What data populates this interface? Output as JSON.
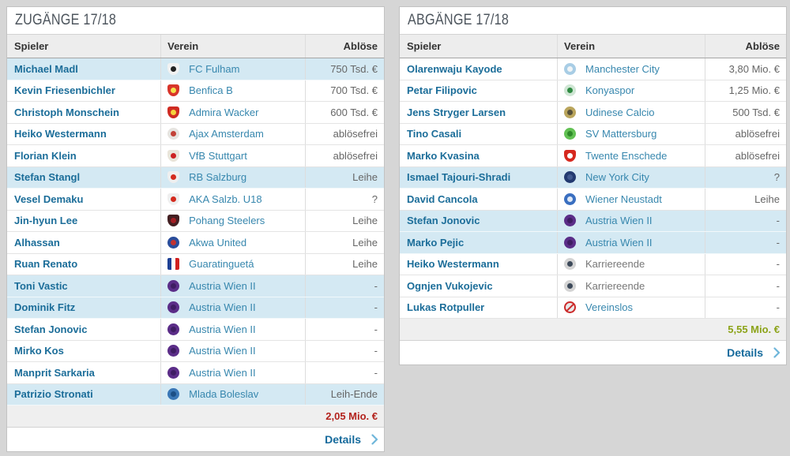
{
  "page": {
    "background": "#d6d6d6"
  },
  "colors": {
    "highlight_row": "#d4e9f3",
    "player_link": "#1b6d99",
    "club_link": "#3787ae",
    "fee_text": "#666666",
    "details_link": "#156a9c",
    "chevron": "#6fb6da",
    "sum_negative": "#b3231d",
    "sum_positive": "#8ca318"
  },
  "tables": [
    {
      "title": "ZUGÄNGE 17/18",
      "columns": [
        "Spieler",
        "Verein",
        "Ablöse"
      ],
      "sum": "2,05 Mio. €",
      "sum_color": "#b3231d",
      "details_label": "Details",
      "rows": [
        {
          "player": "Michael Madl",
          "club": "FC Fulham",
          "fee": "750 Tsd. €",
          "highlight": true,
          "club_link": true,
          "badge": {
            "shape": "shield",
            "c1": "#f2f2f2",
            "c2": "#222222"
          }
        },
        {
          "player": "Kevin Friesenbichler",
          "club": "Benfica B",
          "fee": "700 Tsd. €",
          "highlight": false,
          "club_link": true,
          "badge": {
            "shape": "shield",
            "c1": "#d8352a",
            "c2": "#f3e24c"
          }
        },
        {
          "player": "Christoph Monschein",
          "club": "Admira Wacker",
          "fee": "600 Tsd. €",
          "highlight": false,
          "club_link": true,
          "badge": {
            "shape": "shield",
            "c1": "#cf2b22",
            "c2": "#f5d23c"
          }
        },
        {
          "player": "Heiko Westermann",
          "club": "Ajax Amsterdam",
          "fee": "ablösefrei",
          "highlight": false,
          "club_link": true,
          "badge": {
            "shape": "circle",
            "c1": "#e6e4e0",
            "c2": "#c24238"
          }
        },
        {
          "player": "Florian Klein",
          "club": "VfB Stuttgart",
          "fee": "ablösefrei",
          "highlight": false,
          "club_link": true,
          "badge": {
            "shape": "shield",
            "c1": "#e9e5da",
            "c2": "#cc2222"
          }
        },
        {
          "player": "Stefan Stangl",
          "club": "RB Salzburg",
          "fee": "Leihe",
          "highlight": true,
          "club_link": true,
          "badge": {
            "shape": "shield",
            "c1": "#efefef",
            "c2": "#d42b1e"
          }
        },
        {
          "player": "Vesel Demaku",
          "club": "AKA Salzb. U18",
          "fee": "?",
          "highlight": false,
          "club_link": true,
          "badge": {
            "shape": "shield",
            "c1": "#efefef",
            "c2": "#d42b1e"
          }
        },
        {
          "player": "Jin-hyun Lee",
          "club": "Pohang Steelers",
          "fee": "Leihe",
          "highlight": false,
          "club_link": true,
          "badge": {
            "shape": "shield",
            "c1": "#431f22",
            "c2": "#a31e24"
          }
        },
        {
          "player": "Alhassan",
          "club": "Akwa United",
          "fee": "Leihe",
          "highlight": false,
          "club_link": true,
          "badge": {
            "shape": "circle",
            "c1": "#2a4d9b",
            "c2": "#c23331"
          }
        },
        {
          "player": "Ruan Renato",
          "club": "Guaratinguetá",
          "fee": "Leihe",
          "highlight": false,
          "club_link": true,
          "badge": {
            "shape": "flag",
            "c1": "#1c3f94",
            "c2": "#d02020"
          }
        },
        {
          "player": "Toni Vastic",
          "club": "Austria Wien II",
          "fee": "-",
          "highlight": true,
          "club_link": true,
          "badge": {
            "shape": "circle",
            "c1": "#5b2d88",
            "c2": "#3f1d63"
          }
        },
        {
          "player": "Dominik Fitz",
          "club": "Austria Wien II",
          "fee": "-",
          "highlight": true,
          "club_link": true,
          "badge": {
            "shape": "circle",
            "c1": "#5b2d88",
            "c2": "#3f1d63"
          }
        },
        {
          "player": "Stefan Jonovic",
          "club": "Austria Wien II",
          "fee": "-",
          "highlight": false,
          "club_link": true,
          "badge": {
            "shape": "circle",
            "c1": "#5b2d88",
            "c2": "#3f1d63"
          }
        },
        {
          "player": "Mirko Kos",
          "club": "Austria Wien II",
          "fee": "-",
          "highlight": false,
          "club_link": true,
          "badge": {
            "shape": "circle",
            "c1": "#5b2d88",
            "c2": "#3f1d63"
          }
        },
        {
          "player": "Manprit Sarkaria",
          "club": "Austria Wien II",
          "fee": "-",
          "highlight": false,
          "club_link": true,
          "badge": {
            "shape": "circle",
            "c1": "#5b2d88",
            "c2": "#3f1d63"
          }
        },
        {
          "player": "Patrizio Stronati",
          "club": "Mlada Boleslav",
          "fee": "Leih-Ende",
          "highlight": true,
          "club_link": true,
          "badge": {
            "shape": "circle",
            "c1": "#3a77b6",
            "c2": "#1c4f86"
          }
        }
      ]
    },
    {
      "title": "ABGÄNGE 17/18",
      "columns": [
        "Spieler",
        "Verein",
        "Ablöse"
      ],
      "sum": "5,55 Mio. €",
      "sum_color": "#8ca318",
      "details_label": "Details",
      "rows": [
        {
          "player": "Olarenwaju Kayode",
          "club": "Manchester City",
          "fee": "3,80 Mio. €",
          "highlight": false,
          "club_link": true,
          "badge": {
            "shape": "circle",
            "c1": "#a8cde5",
            "c2": "#f0f4f6"
          }
        },
        {
          "player": "Petar Filipovic",
          "club": "Konyaspor",
          "fee": "1,25 Mio. €",
          "highlight": false,
          "club_link": true,
          "badge": {
            "shape": "circle",
            "c1": "#cfe6d4",
            "c2": "#2f8a42"
          }
        },
        {
          "player": "Jens Stryger Larsen",
          "club": "Udinese Calcio",
          "fee": "500 Tsd. €",
          "highlight": false,
          "club_link": true,
          "badge": {
            "shape": "circle",
            "c1": "#baa55c",
            "c2": "#55503a"
          }
        },
        {
          "player": "Tino Casali",
          "club": "SV Mattersburg",
          "fee": "ablösefrei",
          "highlight": false,
          "club_link": true,
          "badge": {
            "shape": "circle",
            "c1": "#62c153",
            "c2": "#2f8a2a"
          }
        },
        {
          "player": "Marko Kvasina",
          "club": "Twente Enschede",
          "fee": "ablösefrei",
          "highlight": false,
          "club_link": true,
          "badge": {
            "shape": "shield",
            "c1": "#d6281e",
            "c2": "#ffffff"
          }
        },
        {
          "player": "Ismael Tajouri-Shradi",
          "club": "New York City",
          "fee": "?",
          "highlight": true,
          "club_link": true,
          "badge": {
            "shape": "circle",
            "c1": "#233a70",
            "c2": "#41598f"
          }
        },
        {
          "player": "David Cancola",
          "club": "Wiener Neustadt",
          "fee": "Leihe",
          "highlight": false,
          "club_link": true,
          "badge": {
            "shape": "circle",
            "c1": "#3a6fc0",
            "c2": "#dfe8f5"
          }
        },
        {
          "player": "Stefan Jonovic",
          "club": "Austria Wien II",
          "fee": "-",
          "highlight": true,
          "club_link": true,
          "badge": {
            "shape": "circle",
            "c1": "#5b2d88",
            "c2": "#3f1d63"
          }
        },
        {
          "player": "Marko Pejic",
          "club": "Austria Wien II",
          "fee": "-",
          "highlight": true,
          "club_link": true,
          "badge": {
            "shape": "circle",
            "c1": "#5b2d88",
            "c2": "#3f1d63"
          }
        },
        {
          "player": "Heiko Westermann",
          "club": "Karriereende",
          "fee": "-",
          "highlight": false,
          "club_link": false,
          "badge": {
            "shape": "circle",
            "c1": "#d4d4d4",
            "c2": "#3d4a5a"
          }
        },
        {
          "player": "Ognjen Vukojevic",
          "club": "Karriereende",
          "fee": "-",
          "highlight": false,
          "club_link": false,
          "badge": {
            "shape": "circle",
            "c1": "#d4d4d4",
            "c2": "#3d4a5a"
          }
        },
        {
          "player": "Lukas Rotpuller",
          "club": "Vereinslos",
          "fee": "-",
          "highlight": false,
          "club_link": true,
          "badge": {
            "shape": "prohibit",
            "c1": "#e8e8e8",
            "c2": "#cc2a2a"
          }
        }
      ]
    }
  ]
}
